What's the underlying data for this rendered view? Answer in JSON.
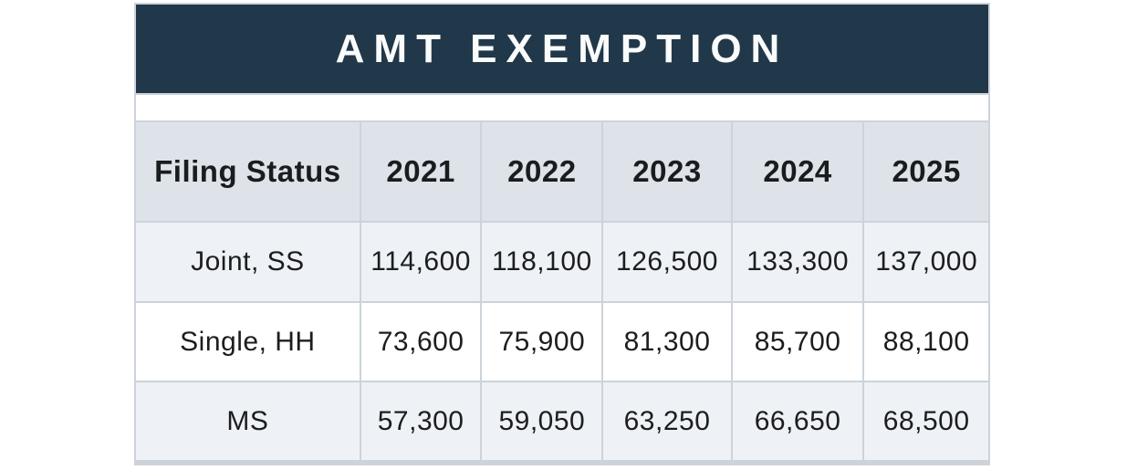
{
  "table": {
    "title": "AMT EXEMPTION",
    "columns": [
      "Filing Status",
      "2021",
      "2022",
      "2023",
      "2024",
      "2025"
    ],
    "rows": [
      {
        "label": "Joint, SS",
        "values": [
          "114,600",
          "118,100",
          "126,500",
          "133,300",
          "137,000"
        ]
      },
      {
        "label": "Single, HH",
        "values": [
          "73,600",
          "75,900",
          "81,300",
          "85,700",
          "88,100"
        ]
      },
      {
        "label": "MS",
        "values": [
          "57,300",
          "59,050",
          "63,250",
          "66,650",
          "68,500"
        ]
      }
    ]
  },
  "colors": {
    "title_band_background": "#21384a",
    "title_text": "#fafbfb",
    "header_row_background": "#dde3e9",
    "shaded_row_background": "#eef1f5",
    "plain_row_background": "#ffffff",
    "grid_border": "#ccd3da",
    "body_text": "#1c1d1f"
  },
  "chart_data": {
    "type": "table",
    "title": "AMT EXEMPTION",
    "categories": [
      "2021",
      "2022",
      "2023",
      "2024",
      "2025"
    ],
    "row_header_label": "Filing Status",
    "series": [
      {
        "name": "Joint, SS",
        "values": [
          114600,
          118100,
          126500,
          133300,
          137000
        ]
      },
      {
        "name": "Single, HH",
        "values": [
          73600,
          75900,
          81300,
          85700,
          88100
        ]
      },
      {
        "name": "MS",
        "values": [
          57300,
          59050,
          63250,
          66650,
          68500
        ]
      }
    ]
  }
}
